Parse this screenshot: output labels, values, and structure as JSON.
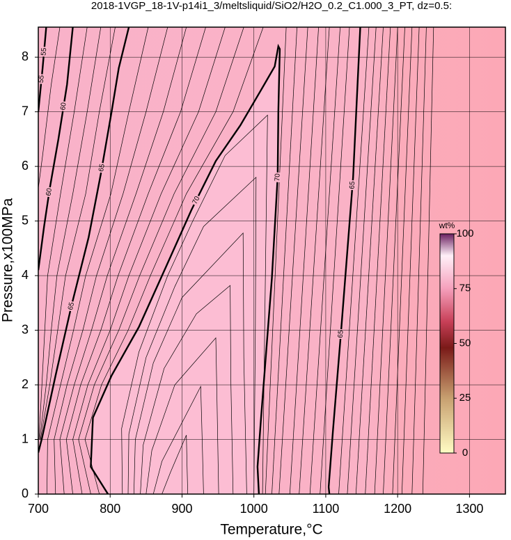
{
  "chart_data": {
    "type": "contour",
    "title": "2018-1VGP_18-1V-p14i1_3/meltsliquid/SiO2/H2O_0.2_C1.000_3_PT, dz=0.5:",
    "xlabel": "Temperature,°C",
    "ylabel": "Pressure,x100MPa",
    "xlim": [
      700,
      1350
    ],
    "ylim": [
      0,
      8.55
    ],
    "xticks": [
      700,
      800,
      900,
      1000,
      1100,
      1200,
      1300
    ],
    "yticks": [
      0,
      1,
      2,
      3,
      4,
      5,
      6,
      7,
      8
    ],
    "grid": true,
    "colorbar": {
      "label": "wt%",
      "lim": [
        0,
        100
      ],
      "ticks": [
        0,
        25,
        50,
        75,
        100
      ]
    },
    "contours": [
      {
        "level": 55,
        "x": [
          711,
          706,
          700
        ],
        "y": [
          8.55,
          7.8,
          7.0
        ]
      },
      {
        "level": 60,
        "x": [
          748,
          740,
          728,
          716,
          708,
          702,
          700
        ],
        "y": [
          8.55,
          7.5,
          6.5,
          5.6,
          4.9,
          4.3,
          4.1
        ]
      },
      {
        "level": 65,
        "x": [
          826,
          812,
          802,
          787,
          770,
          746,
          724,
          705,
          700
        ],
        "y": [
          8.55,
          7.8,
          7.0,
          5.86,
          4.7,
          3.44,
          2.17,
          1.02,
          0.76
        ]
      },
      {
        "level": 70,
        "x": [
          797,
          773,
          776,
          802,
          840,
          879,
          913,
          947,
          981,
          1010,
          1029,
          1034,
          1036,
          1034,
          1033,
          1025,
          1010,
          1005,
          1007
        ],
        "y": [
          0,
          0.5,
          1.4,
          2.17,
          3.06,
          4.2,
          5.2,
          6.1,
          6.75,
          7.4,
          7.83,
          8.2,
          8.15,
          7.0,
          5.8,
          3.95,
          1.4,
          0.5,
          0
        ]
      },
      {
        "level": 65,
        "x": [
          1148,
          1138,
          1121,
          1110,
          1104,
          1105
        ],
        "y": [
          8.55,
          5.8,
          2.93,
          1.15,
          0.13,
          0
        ]
      }
    ],
    "thin_contours": [
      {
        "x": [
          730,
          718,
          706,
          700
        ],
        "y": [
          8.55,
          7.5,
          6.2,
          5.6
        ]
      },
      {
        "x": [
          768,
          750,
          731,
          713,
          709,
          705,
          701
        ],
        "y": [
          8.55,
          7,
          5.5,
          4,
          3,
          2,
          1
        ]
      },
      {
        "x": [
          787,
          768,
          748,
          726,
          718,
          711,
          702
        ],
        "y": [
          8.55,
          7,
          5.5,
          4,
          3,
          2,
          1
        ]
      },
      {
        "x": [
          807,
          785,
          766,
          738,
          727,
          716,
          703
        ],
        "y": [
          8.55,
          7,
          5.5,
          4,
          3,
          2,
          1
        ]
      },
      {
        "x": [
          853,
          826,
          801,
          766,
          749,
          731,
          713,
          712
        ],
        "y": [
          8.55,
          7,
          5.5,
          4,
          3,
          2,
          1,
          0
        ]
      },
      {
        "x": [
          880,
          850,
          818,
          781,
          762,
          740,
          722,
          724
        ],
        "y": [
          8.55,
          7,
          5.5,
          4,
          3,
          2,
          1,
          0
        ]
      },
      {
        "x": [
          906,
          874,
          836,
          796,
          774,
          750,
          730,
          736
        ],
        "y": [
          8.55,
          7,
          5.5,
          4,
          3,
          2,
          1,
          0
        ]
      },
      {
        "x": [
          933,
          898,
          853,
          811,
          787,
          759,
          739,
          748
        ],
        "y": [
          8.55,
          7,
          5.5,
          4,
          3,
          2,
          1,
          0
        ]
      },
      {
        "x": [
          960,
          923,
          871,
          826,
          800,
          769,
          748,
          761
        ],
        "y": [
          8.55,
          7,
          5.5,
          4,
          3,
          2,
          1,
          0
        ]
      },
      {
        "x": [
          986,
          947,
          889,
          841,
          812,
          778,
          756,
          773
        ],
        "y": [
          8.55,
          7,
          5.5,
          4,
          3,
          2,
          1,
          0
        ]
      },
      {
        "x": [
          1013,
          971,
          906,
          856,
          825,
          788,
          765,
          785
        ],
        "y": [
          8.55,
          7,
          5.5,
          4,
          3,
          2,
          1,
          0
        ]
      },
      {
        "x": [
          872,
          884,
          906,
          907,
          908
        ],
        "y": [
          0,
          0.4,
          1.08,
          0.5,
          0
        ]
      },
      {
        "x": [
          860,
          872,
          926,
          928,
          930
        ],
        "y": [
          0,
          0.6,
          1.97,
          1.0,
          0
        ]
      },
      {
        "x": [
          850,
          858,
          890,
          947,
          949,
          951
        ],
        "y": [
          0,
          0.8,
          2.0,
          2.86,
          1.5,
          0
        ]
      },
      {
        "x": [
          842,
          846,
          875,
          920,
          967,
          968,
          971
        ],
        "y": [
          0,
          0.9,
          2.3,
          3.3,
          3.82,
          2.0,
          0
        ]
      },
      {
        "x": [
          833,
          835,
          860,
          900,
          985,
          986,
          990
        ],
        "y": [
          0,
          1.0,
          2.4,
          3.6,
          4.78,
          2.5,
          0
        ]
      },
      {
        "x": [
          825,
          826,
          850,
          890,
          930,
          1003,
          1002,
          1000
        ],
        "y": [
          0,
          1.1,
          2.5,
          3.8,
          4.9,
          5.8,
          3.0,
          0
        ]
      },
      {
        "x": [
          817,
          816,
          840,
          880,
          915,
          960,
          1019,
          1016,
          1012
        ],
        "y": [
          0,
          1.2,
          2.6,
          4.0,
          5.0,
          6.2,
          6.94,
          4.0,
          0
        ]
      },
      {
        "x": [
          1045,
          1016
        ],
        "y": [
          8.55,
          0
        ]
      },
      {
        "x": [
          1060,
          1025
        ],
        "y": [
          8.55,
          0
        ]
      },
      {
        "x": [
          1075,
          1035
        ],
        "y": [
          8.55,
          0
        ]
      },
      {
        "x": [
          1090,
          1050
        ],
        "y": [
          8.55,
          0
        ]
      },
      {
        "x": [
          1105,
          1063
        ],
        "y": [
          8.55,
          0
        ]
      },
      {
        "x": [
          1120,
          1078
        ],
        "y": [
          8.55,
          0
        ]
      },
      {
        "x": [
          1133,
          1092
        ],
        "y": [
          8.55,
          0
        ]
      },
      {
        "x": [
          1160,
          1118
        ],
        "y": [
          8.55,
          0
        ]
      },
      {
        "x": [
          1170,
          1130
        ],
        "y": [
          8.55,
          0
        ]
      },
      {
        "x": [
          1180,
          1142
        ],
        "y": [
          8.55,
          0
        ]
      },
      {
        "x": [
          1190,
          1155
        ],
        "y": [
          8.55,
          0
        ]
      },
      {
        "x": [
          1200,
          1168
        ],
        "y": [
          8.55,
          0
        ]
      },
      {
        "x": [
          1210,
          1180
        ],
        "y": [
          8.55,
          0
        ]
      },
      {
        "x": [
          1220,
          1193
        ],
        "y": [
          8.55,
          0
        ]
      },
      {
        "x": [
          1230,
          1206
        ],
        "y": [
          8.55,
          0
        ]
      },
      {
        "x": [
          1240,
          1220
        ],
        "y": [
          8.55,
          0
        ]
      },
      {
        "x": [
          1250,
          1235
        ],
        "y": [
          8.55,
          0
        ]
      }
    ]
  }
}
